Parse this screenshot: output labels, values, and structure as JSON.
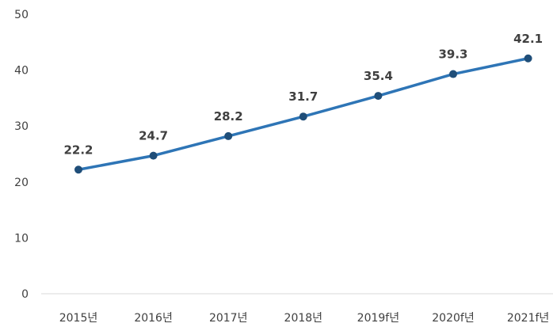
{
  "chart_data": {
    "type": "line",
    "title": "",
    "xlabel": "",
    "ylabel": "",
    "categories": [
      "2015년",
      "2016년",
      "2017년",
      "2018년",
      "2019f년",
      "2020f년",
      "2021f년"
    ],
    "series": [
      {
        "values": [
          22.2,
          24.7,
          28.2,
          31.7,
          35.4,
          39.3,
          42.1
        ],
        "color": "#2E75B6",
        "marker_color": "#1F4E79"
      }
    ],
    "data_labels": [
      "22.2",
      "24.7",
      "28.2",
      "31.7",
      "35.4",
      "39.3",
      "42.1"
    ],
    "ylim": [
      0,
      50
    ],
    "yticks": [
      0,
      10,
      20,
      30,
      40,
      50
    ],
    "ytick_labels": [
      "0",
      "10",
      "20",
      "30",
      "40",
      "50"
    ],
    "grid": false,
    "legend": "none"
  }
}
